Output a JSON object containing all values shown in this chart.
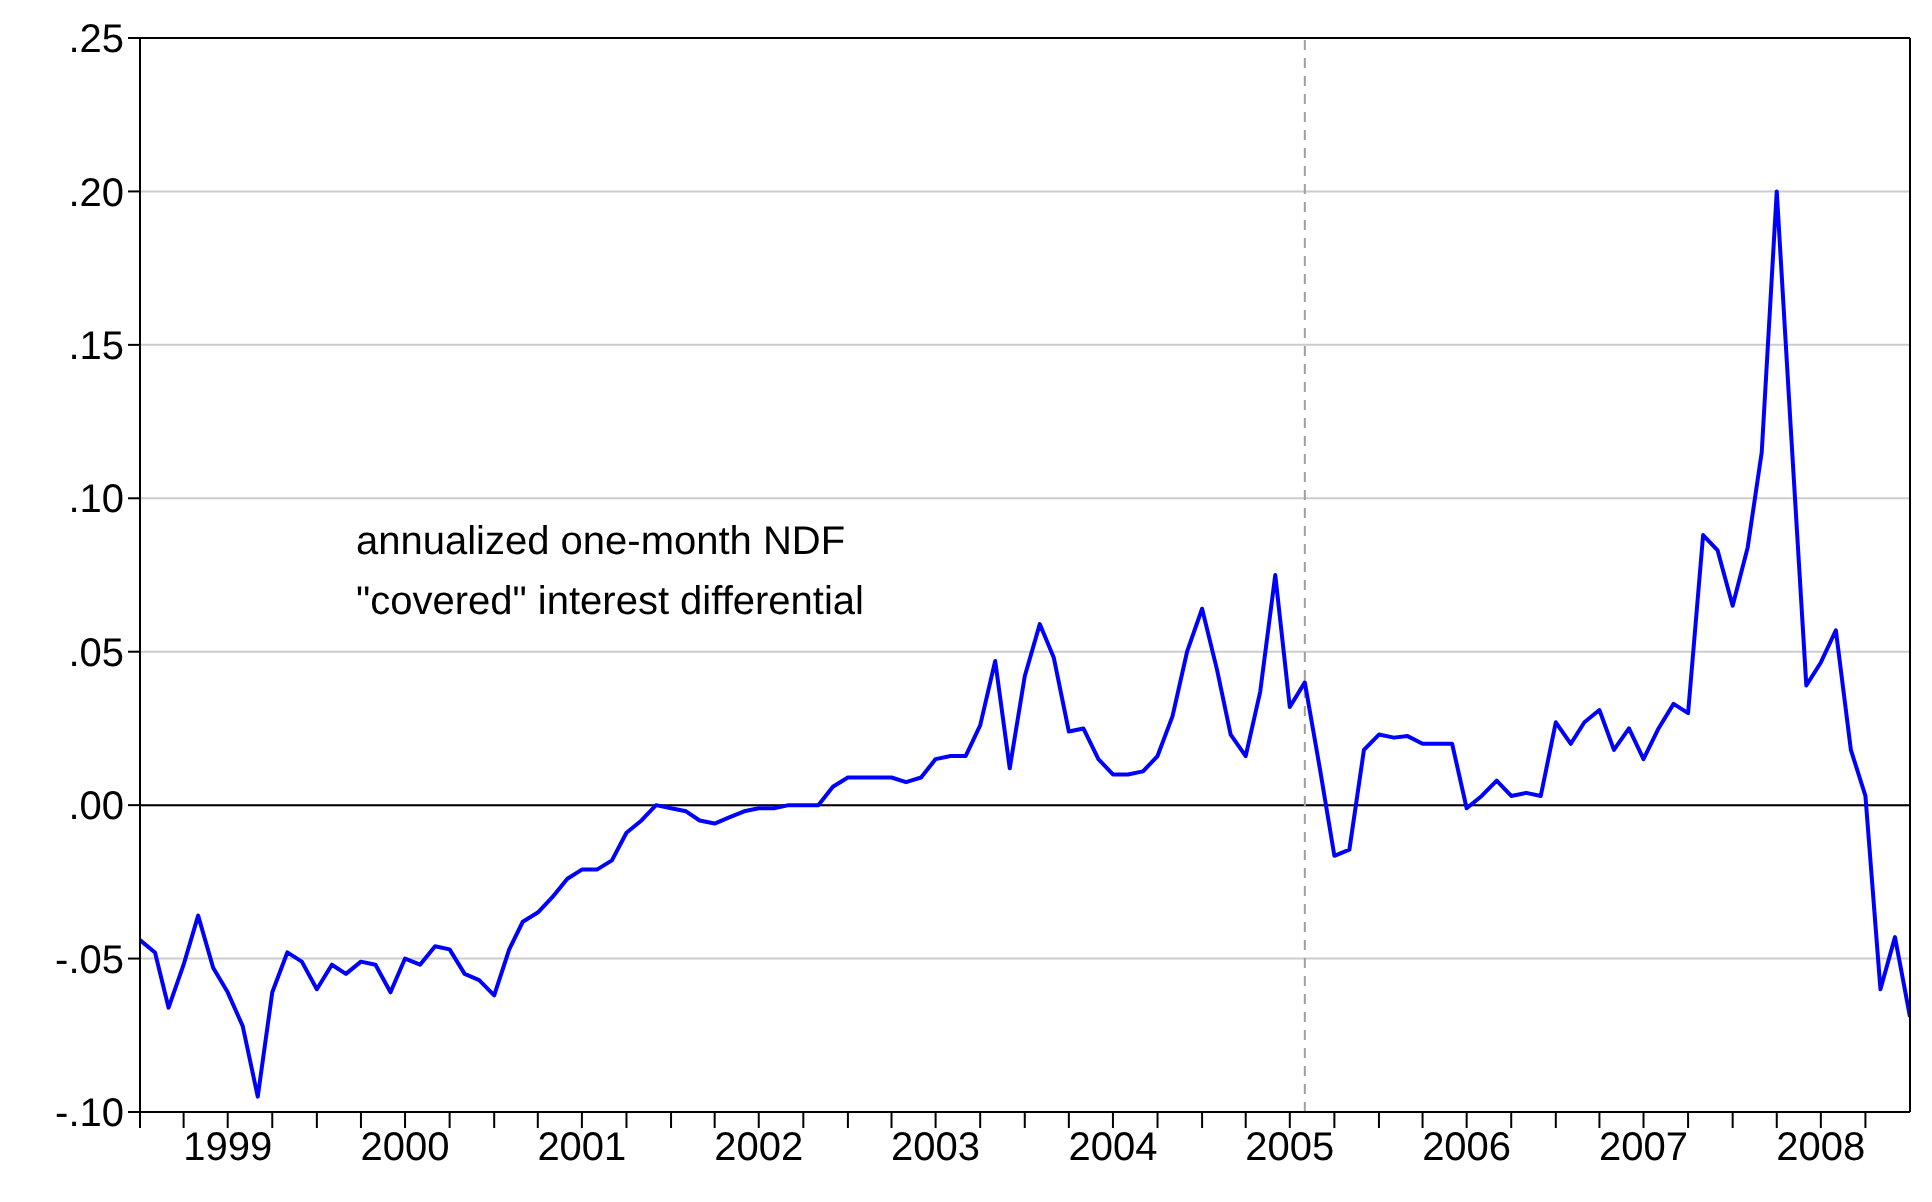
{
  "chart_data": {
    "type": "line",
    "annotations": [
      "annualized one-month NDF\n\"covered\" interest differential"
    ],
    "x": [
      "1999-01",
      "1999-02",
      "1999-03",
      "1999-04",
      "1999-05",
      "1999-06",
      "1999-07",
      "1999-08",
      "1999-09",
      "1999-10",
      "1999-11",
      "1999-12",
      "2000-01",
      "2000-02",
      "2000-03",
      "2000-04",
      "2000-05",
      "2000-06",
      "2000-07",
      "2000-08",
      "2000-09",
      "2000-10",
      "2000-11",
      "2000-12",
      "2001-01",
      "2001-02",
      "2001-03",
      "2001-04",
      "2001-05",
      "2001-06",
      "2001-07",
      "2001-08",
      "2001-09",
      "2001-10",
      "2001-11",
      "2001-12",
      "2002-01",
      "2002-02",
      "2002-03",
      "2002-04",
      "2002-05",
      "2002-06",
      "2002-07",
      "2002-08",
      "2002-09",
      "2002-10",
      "2002-11",
      "2002-12",
      "2003-01",
      "2003-02",
      "2003-03",
      "2003-04",
      "2003-05",
      "2003-06",
      "2003-07",
      "2003-08",
      "2003-09",
      "2003-10",
      "2003-11",
      "2003-12",
      "2004-01",
      "2004-02",
      "2004-03",
      "2004-04",
      "2004-05",
      "2004-06",
      "2004-07",
      "2004-08",
      "2004-09",
      "2004-10",
      "2004-11",
      "2004-12",
      "2005-01",
      "2005-02",
      "2005-03",
      "2005-04",
      "2005-05",
      "2005-06",
      "2005-07",
      "2005-08",
      "2005-09",
      "2005-10",
      "2005-11",
      "2005-12",
      "2006-01",
      "2006-02",
      "2006-03",
      "2006-04",
      "2006-05",
      "2006-06",
      "2006-07",
      "2006-08",
      "2006-09",
      "2006-10",
      "2006-11",
      "2006-12",
      "2007-01",
      "2007-02",
      "2007-03",
      "2007-04",
      "2007-05",
      "2007-06",
      "2007-07",
      "2007-08",
      "2007-09",
      "2007-10",
      "2007-11",
      "2007-12",
      "2008-01",
      "2008-02",
      "2008-03",
      "2008-04",
      "2008-05",
      "2008-06",
      "2008-07",
      "2008-08",
      "2008-09",
      "2008-10",
      "2008-11",
      "2008-12",
      "2009-01"
    ],
    "series": [
      {
        "color": "#0000ff",
        "values": [
          -0.044,
          -0.048,
          -0.066,
          -0.052,
          -0.036,
          -0.053,
          -0.061,
          -0.072,
          -0.095,
          -0.061,
          -0.048,
          -0.051,
          -0.06,
          -0.052,
          -0.055,
          -0.051,
          -0.052,
          -0.061,
          -0.05,
          -0.052,
          -0.046,
          -0.047,
          -0.055,
          -0.057,
          -0.062,
          -0.047,
          -0.038,
          -0.035,
          -0.03,
          -0.024,
          -0.021,
          -0.021,
          -0.018,
          -0.009,
          -0.005,
          0.0,
          -0.001,
          -0.002,
          -0.005,
          -0.006,
          -0.004,
          -0.002,
          -0.001,
          -0.001,
          0.0,
          0.0,
          0.0,
          0.006,
          0.009,
          0.009,
          0.009,
          0.009,
          0.0075,
          0.009,
          0.015,
          0.016,
          0.016,
          0.026,
          0.047,
          0.012,
          0.042,
          0.059,
          0.048,
          0.024,
          0.025,
          0.015,
          0.01,
          0.01,
          0.011,
          0.016,
          0.029,
          0.05,
          0.064,
          0.044,
          0.023,
          0.016,
          0.037,
          0.075,
          0.032,
          0.04,
          0.012,
          -0.0165,
          -0.0145,
          0.018,
          0.023,
          0.022,
          0.0225,
          0.02,
          0.02,
          0.02,
          -0.001,
          0.003,
          0.008,
          0.003,
          0.004,
          0.003,
          0.027,
          0.02,
          0.027,
          0.031,
          0.018,
          0.025,
          0.015,
          0.025,
          0.033,
          0.03,
          0.088,
          0.083,
          0.065,
          0.084,
          0.115,
          0.2,
          0.12,
          0.039,
          0.0465,
          0.057,
          0.018,
          0.003,
          -0.06,
          -0.043,
          -0.069
        ]
      }
    ],
    "xlim": [
      "1999-01",
      "2009-01"
    ],
    "xticks": [
      {
        "value": "1999-01",
        "label": null
      },
      {
        "value": "1999-04",
        "label": null
      },
      {
        "value": "1999-07",
        "label": "1999"
      },
      {
        "value": "1999-10",
        "label": null
      },
      {
        "value": "2000-01",
        "label": null
      },
      {
        "value": "2000-04",
        "label": null
      },
      {
        "value": "2000-07",
        "label": "2000"
      },
      {
        "value": "2000-10",
        "label": null
      },
      {
        "value": "2001-01",
        "label": null
      },
      {
        "value": "2001-04",
        "label": null
      },
      {
        "value": "2001-07",
        "label": "2001"
      },
      {
        "value": "2001-10",
        "label": null
      },
      {
        "value": "2002-01",
        "label": null
      },
      {
        "value": "2002-04",
        "label": null
      },
      {
        "value": "2002-07",
        "label": "2002"
      },
      {
        "value": "2002-10",
        "label": null
      },
      {
        "value": "2003-01",
        "label": null
      },
      {
        "value": "2003-04",
        "label": null
      },
      {
        "value": "2003-07",
        "label": "2003"
      },
      {
        "value": "2003-10",
        "label": null
      },
      {
        "value": "2004-01",
        "label": null
      },
      {
        "value": "2004-04",
        "label": null
      },
      {
        "value": "2004-07",
        "label": "2004"
      },
      {
        "value": "2004-10",
        "label": null
      },
      {
        "value": "2005-01",
        "label": null
      },
      {
        "value": "2005-04",
        "label": null
      },
      {
        "value": "2005-07",
        "label": "2005"
      },
      {
        "value": "2005-10",
        "label": null
      },
      {
        "value": "2006-01",
        "label": null
      },
      {
        "value": "2006-04",
        "label": null
      },
      {
        "value": "2006-07",
        "label": "2006"
      },
      {
        "value": "2006-10",
        "label": null
      },
      {
        "value": "2007-01",
        "label": null
      },
      {
        "value": "2007-04",
        "label": null
      },
      {
        "value": "2007-07",
        "label": "2007"
      },
      {
        "value": "2007-10",
        "label": null
      },
      {
        "value": "2008-01",
        "label": null
      },
      {
        "value": "2008-04",
        "label": null
      },
      {
        "value": "2008-07",
        "label": "2008"
      },
      {
        "value": "2008-10",
        "label": null
      }
    ],
    "ylim": [
      -0.1,
      0.25
    ],
    "yticks": [
      {
        "value": -0.1,
        "label": "-.10"
      },
      {
        "value": -0.05,
        "label": "-.05"
      },
      {
        "value": 0,
        "label": ".00"
      },
      {
        "value": 0.05,
        "label": ".05"
      },
      {
        "value": 0.1,
        "label": ".10"
      },
      {
        "value": 0.15,
        "label": ".15"
      },
      {
        "value": 0.2,
        "label": ".20"
      },
      {
        "value": 0.25,
        "label": ".25"
      }
    ],
    "grid": "y",
    "ref_lines": [
      {
        "axis": "y",
        "value": 0,
        "color": "#000000",
        "line_style": "solid"
      },
      {
        "axis": "x",
        "value": "2005-08",
        "color": "#a0a0a0",
        "line_style": "dashed"
      }
    ]
  }
}
